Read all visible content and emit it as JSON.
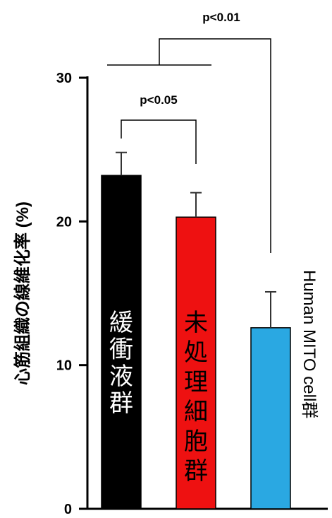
{
  "chart_data": {
    "type": "bar",
    "categories": [
      "緩衝液群",
      "未処理細胞群",
      "Human MITO cell群"
    ],
    "values": [
      23.2,
      20.3,
      12.6
    ],
    "errors": [
      1.6,
      1.7,
      2.5
    ],
    "colors": [
      "#000000",
      "#ee1111",
      "#2aa8e2"
    ],
    "label_colors": [
      "#ffffff",
      "#000000",
      "#000000"
    ],
    "ylabel": "心筋組織の線維化率 (%)",
    "ylim": [
      0,
      30
    ],
    "yticks": [
      0,
      10,
      20,
      30
    ],
    "grid": false,
    "legend": "none",
    "significance": [
      {
        "label": "p<0.05",
        "between": [
          "緩衝液群",
          "未処理細胞群"
        ]
      },
      {
        "label": "p<0.01",
        "between": [
          "緩衝液群 + 未処理細胞群",
          "Human MITO cell群"
        ]
      }
    ]
  }
}
